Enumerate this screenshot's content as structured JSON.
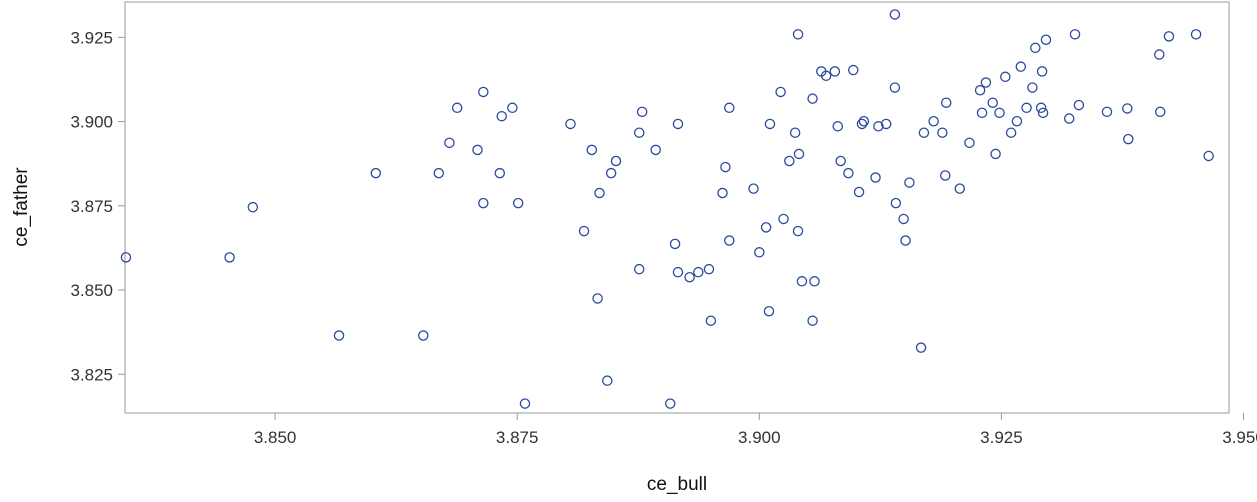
{
  "chart_data": {
    "type": "scatter",
    "title": "",
    "xlabel": "ce_bull",
    "ylabel": "ce_father",
    "xlim": [
      3.8345,
      3.9485
    ],
    "ylim": [
      3.8135,
      3.9355
    ],
    "x_ticks": [
      "3.850",
      "3.875",
      "3.900",
      "3.925",
      "3.950"
    ],
    "x_tick_values": [
      3.85,
      3.875,
      3.9,
      3.925,
      3.95
    ],
    "y_ticks": [
      "3.825",
      "3.850",
      "3.875",
      "3.900",
      "3.925"
    ],
    "y_tick_values": [
      3.825,
      3.85,
      3.875,
      3.9,
      3.925
    ],
    "grid": false,
    "marker_color": "#2a4b9b",
    "points": [
      {
        "x": 3.8346,
        "y": 3.8597
      },
      {
        "x": 3.8453,
        "y": 3.8597
      },
      {
        "x": 3.8477,
        "y": 3.8746
      },
      {
        "x": 3.8566,
        "y": 3.8365
      },
      {
        "x": 3.8604,
        "y": 3.8847
      },
      {
        "x": 3.8653,
        "y": 3.8365
      },
      {
        "x": 3.8669,
        "y": 3.8847
      },
      {
        "x": 3.868,
        "y": 3.8937
      },
      {
        "x": 3.8688,
        "y": 3.9041
      },
      {
        "x": 3.8709,
        "y": 3.8916
      },
      {
        "x": 3.8715,
        "y": 3.9088
      },
      {
        "x": 3.8715,
        "y": 3.8758
      },
      {
        "x": 3.8732,
        "y": 3.8847
      },
      {
        "x": 3.8734,
        "y": 3.9016
      },
      {
        "x": 3.8745,
        "y": 3.9041
      },
      {
        "x": 3.8751,
        "y": 3.8758
      },
      {
        "x": 3.8758,
        "y": 3.8163
      },
      {
        "x": 3.8805,
        "y": 3.8993
      },
      {
        "x": 3.8819,
        "y": 3.8675
      },
      {
        "x": 3.8827,
        "y": 3.8916
      },
      {
        "x": 3.8833,
        "y": 3.8475
      },
      {
        "x": 3.8835,
        "y": 3.8788
      },
      {
        "x": 3.8843,
        "y": 3.8231
      },
      {
        "x": 3.8847,
        "y": 3.8847
      },
      {
        "x": 3.8852,
        "y": 3.8883
      },
      {
        "x": 3.8876,
        "y": 3.8562
      },
      {
        "x": 3.8876,
        "y": 3.8967
      },
      {
        "x": 3.8879,
        "y": 3.9029
      },
      {
        "x": 3.8893,
        "y": 3.8916
      },
      {
        "x": 3.8908,
        "y": 3.8163
      },
      {
        "x": 3.8913,
        "y": 3.8637
      },
      {
        "x": 3.8916,
        "y": 3.8993
      },
      {
        "x": 3.8916,
        "y": 3.8553
      },
      {
        "x": 3.8928,
        "y": 3.8538
      },
      {
        "x": 3.8937,
        "y": 3.8553
      },
      {
        "x": 3.8948,
        "y": 3.8562
      },
      {
        "x": 3.895,
        "y": 3.8409
      },
      {
        "x": 3.8962,
        "y": 3.8788
      },
      {
        "x": 3.8965,
        "y": 3.8865
      },
      {
        "x": 3.8969,
        "y": 3.9041
      },
      {
        "x": 3.8969,
        "y": 3.8647
      },
      {
        "x": 3.8994,
        "y": 3.8801
      },
      {
        "x": 3.9,
        "y": 3.8612
      },
      {
        "x": 3.9007,
        "y": 3.8686
      },
      {
        "x": 3.901,
        "y": 3.8437
      },
      {
        "x": 3.9011,
        "y": 3.8993
      },
      {
        "x": 3.9022,
        "y": 3.9088
      },
      {
        "x": 3.9025,
        "y": 3.8711
      },
      {
        "x": 3.9031,
        "y": 3.8883
      },
      {
        "x": 3.9037,
        "y": 3.8967
      },
      {
        "x": 3.904,
        "y": 3.9259
      },
      {
        "x": 3.904,
        "y": 3.8675
      },
      {
        "x": 3.9041,
        "y": 3.8904
      },
      {
        "x": 3.9044,
        "y": 3.8526
      },
      {
        "x": 3.9055,
        "y": 3.9068
      },
      {
        "x": 3.9055,
        "y": 3.8409
      },
      {
        "x": 3.9057,
        "y": 3.8526
      },
      {
        "x": 3.9064,
        "y": 3.9149
      },
      {
        "x": 3.9069,
        "y": 3.9136
      },
      {
        "x": 3.9078,
        "y": 3.9149
      },
      {
        "x": 3.9081,
        "y": 3.8986
      },
      {
        "x": 3.9084,
        "y": 3.8883
      },
      {
        "x": 3.9092,
        "y": 3.8847
      },
      {
        "x": 3.9097,
        "y": 3.9153
      },
      {
        "x": 3.9103,
        "y": 3.8791
      },
      {
        "x": 3.9106,
        "y": 3.8993
      },
      {
        "x": 3.9108,
        "y": 3.9001
      },
      {
        "x": 3.912,
        "y": 3.8834
      },
      {
        "x": 3.9123,
        "y": 3.8986
      },
      {
        "x": 3.9131,
        "y": 3.8993
      },
      {
        "x": 3.914,
        "y": 3.9318
      },
      {
        "x": 3.914,
        "y": 3.9101
      },
      {
        "x": 3.9141,
        "y": 3.8758
      },
      {
        "x": 3.9149,
        "y": 3.8711
      },
      {
        "x": 3.9151,
        "y": 3.8647
      },
      {
        "x": 3.9155,
        "y": 3.8819
      },
      {
        "x": 3.9167,
        "y": 3.8329
      },
      {
        "x": 3.917,
        "y": 3.8967
      },
      {
        "x": 3.918,
        "y": 3.9001
      },
      {
        "x": 3.9189,
        "y": 3.8967
      },
      {
        "x": 3.9192,
        "y": 3.884
      },
      {
        "x": 3.9193,
        "y": 3.9056
      },
      {
        "x": 3.9207,
        "y": 3.8801
      },
      {
        "x": 3.9217,
        "y": 3.8937
      },
      {
        "x": 3.9228,
        "y": 3.9093
      },
      {
        "x": 3.923,
        "y": 3.9026
      },
      {
        "x": 3.9234,
        "y": 3.9116
      },
      {
        "x": 3.9241,
        "y": 3.9056
      },
      {
        "x": 3.9244,
        "y": 3.8904
      },
      {
        "x": 3.9248,
        "y": 3.9026
      },
      {
        "x": 3.9254,
        "y": 3.9133
      },
      {
        "x": 3.926,
        "y": 3.8967
      },
      {
        "x": 3.9266,
        "y": 3.9001
      },
      {
        "x": 3.927,
        "y": 3.9163
      },
      {
        "x": 3.9276,
        "y": 3.9041
      },
      {
        "x": 3.9282,
        "y": 3.9101
      },
      {
        "x": 3.9285,
        "y": 3.9219
      },
      {
        "x": 3.9291,
        "y": 3.9041
      },
      {
        "x": 3.9292,
        "y": 3.9149
      },
      {
        "x": 3.9293,
        "y": 3.9026
      },
      {
        "x": 3.9296,
        "y": 3.9243
      },
      {
        "x": 3.932,
        "y": 3.9009
      },
      {
        "x": 3.9326,
        "y": 3.9259
      },
      {
        "x": 3.933,
        "y": 3.9049
      },
      {
        "x": 3.9359,
        "y": 3.9029
      },
      {
        "x": 3.938,
        "y": 3.9039
      },
      {
        "x": 3.9381,
        "y": 3.8948
      },
      {
        "x": 3.9413,
        "y": 3.9199
      },
      {
        "x": 3.9414,
        "y": 3.9029
      },
      {
        "x": 3.9423,
        "y": 3.9253
      },
      {
        "x": 3.9451,
        "y": 3.9259
      },
      {
        "x": 3.9464,
        "y": 3.8898
      }
    ]
  }
}
